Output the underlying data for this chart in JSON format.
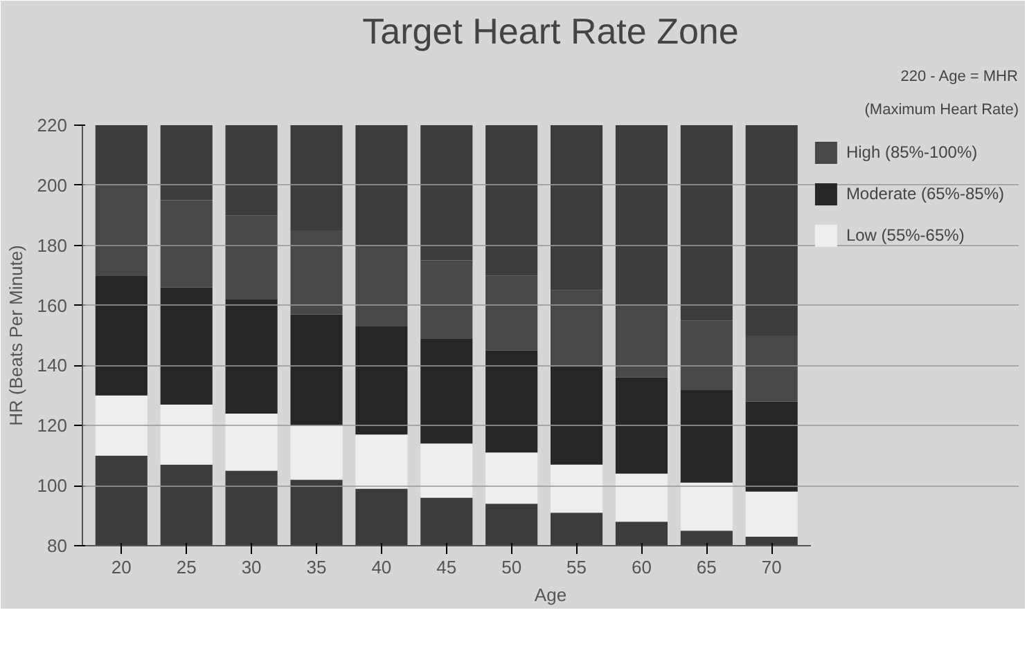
{
  "chart_data": {
    "type": "bar",
    "title": "Target Heart Rate Zone",
    "xlabel": "Age",
    "ylabel": "HR (Beats Per Minute)",
    "annotations": [
      "220 - Age = MHR",
      "(Maximum Heart Rate)"
    ],
    "categories": [
      "20",
      "25",
      "30",
      "35",
      "40",
      "45",
      "50",
      "55",
      "60",
      "65",
      "70"
    ],
    "series": [
      {
        "color": "#3c3c3c",
        "base": [
          80,
          80,
          80,
          80,
          80,
          80,
          80,
          80,
          80,
          80,
          80
        ],
        "values": [
          30,
          27,
          25,
          22,
          19,
          16,
          14,
          11,
          8,
          5,
          3
        ]
      },
      {
        "color": "#3c3c3c",
        "base": [
          200,
          195,
          190,
          185,
          180,
          175,
          170,
          165,
          160,
          155,
          150
        ],
        "values": [
          20,
          25,
          30,
          35,
          40,
          45,
          50,
          55,
          60,
          65,
          70
        ]
      },
      {
        "name": "Low (55%-65%)",
        "color": "#eeeeee",
        "base": [
          110,
          107,
          105,
          102,
          99,
          96,
          94,
          91,
          88,
          85,
          83
        ],
        "values": [
          20,
          20,
          19,
          18,
          18,
          18,
          17,
          16,
          16,
          16,
          15
        ]
      },
      {
        "name": "Moderate (65%-85%)",
        "color": "#262626",
        "base": [
          130,
          127,
          124,
          120,
          117,
          114,
          111,
          107,
          104,
          101,
          98
        ],
        "values": [
          40,
          39,
          38,
          37,
          36,
          35,
          34,
          33,
          32,
          31,
          30
        ]
      },
      {
        "name": "High (85%-100%)",
        "color": "#484848",
        "base": [
          170,
          166,
          162,
          157,
          153,
          149,
          145,
          140,
          136,
          132,
          128
        ],
        "values": [
          30,
          29,
          28,
          28,
          27,
          26,
          25,
          25,
          24,
          23,
          22
        ]
      }
    ],
    "ylim": [
      80,
      220
    ],
    "yticks": [
      80,
      100,
      120,
      140,
      160,
      180,
      200,
      220
    ],
    "grid": "y",
    "legend": "right"
  }
}
